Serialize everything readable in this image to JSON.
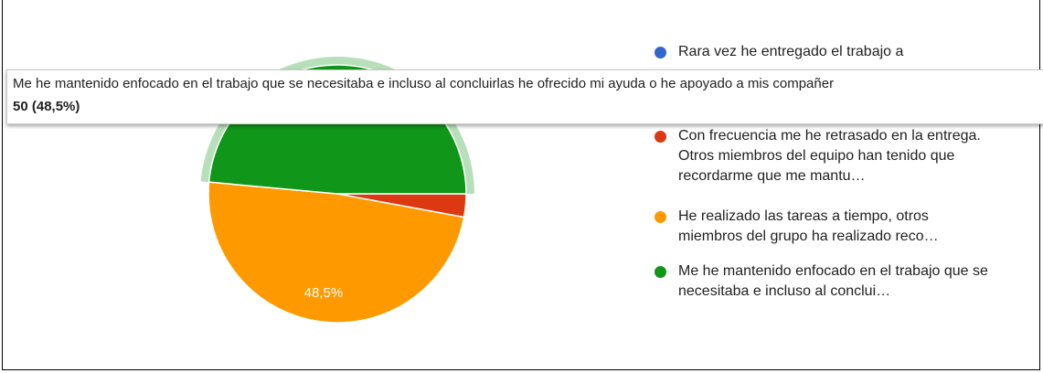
{
  "chart_data": {
    "type": "pie",
    "categories": [
      "Rara vez he entregado el trabajo a",
      "Con frecuencia me he retrasado en la entrega. Otros miembros del equipo han tenido que recordarme que me mantu…",
      "He realizado las tareas a tiempo, otros miembros del grupo ha realizado reco…",
      "Me he mantenido enfocado en el trabajo que se necesitaba e incluso al conclui…"
    ],
    "values": [
      0,
      3,
      50,
      50
    ],
    "value_labels": [
      null,
      null,
      "48,5%",
      null
    ],
    "colors": [
      "#3366cc",
      "#dc3912",
      "#ff9900",
      "#109618"
    ],
    "highlighted": 3,
    "tooltip": {
      "title": "Me he mantenido enfocado en el trabajo que se necesitaba e incluso al concluirlas he ofrecido mi ayuda o he apoyado a mis compañer",
      "text": "50 (48,5%)"
    }
  }
}
